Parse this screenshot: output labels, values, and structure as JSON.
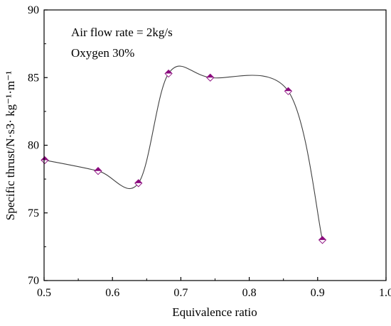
{
  "chart_data": {
    "type": "line",
    "xlabel": "Equivalence ratio",
    "ylabel": "Specific thrust/N·s3· kg⁻¹·m⁻¹",
    "xlim": [
      0.5,
      1.0
    ],
    "ylim": [
      70,
      90
    ],
    "xticks": [
      "0.5",
      "0.6",
      "0.7",
      "0.8",
      "0.9",
      "1.0"
    ],
    "yticks": [
      "70",
      "75",
      "80",
      "85",
      "90"
    ],
    "annotations": [
      "Air flow rate = 2kg/s",
      "Oxygen 30%"
    ],
    "grid": false,
    "marker": "half-filled diamond",
    "colors": {
      "marker_fill": "#8b0a7e",
      "line": "#404040"
    },
    "series": [
      {
        "x": [
          0.501,
          0.579,
          0.638,
          0.682,
          0.743,
          0.857,
          0.907
        ],
        "y": [
          78.9,
          78.1,
          77.2,
          85.3,
          85.0,
          84.0,
          73.0
        ]
      }
    ]
  }
}
